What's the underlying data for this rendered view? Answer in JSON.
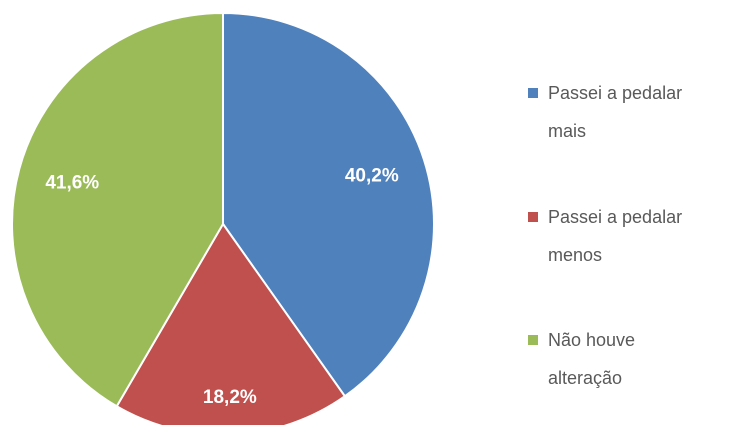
{
  "chart_data": {
    "type": "pie",
    "categories": [
      "Passei a pedalar mais",
      "Passei a pedalar menos",
      "Não houve alteração"
    ],
    "values": [
      40.2,
      18.2,
      41.6
    ],
    "value_labels": [
      "40,2%",
      "18,2%",
      "41,6%"
    ],
    "colors": [
      "#4f81bd",
      "#c0504d",
      "#9bbb59"
    ],
    "legend": "right"
  }
}
